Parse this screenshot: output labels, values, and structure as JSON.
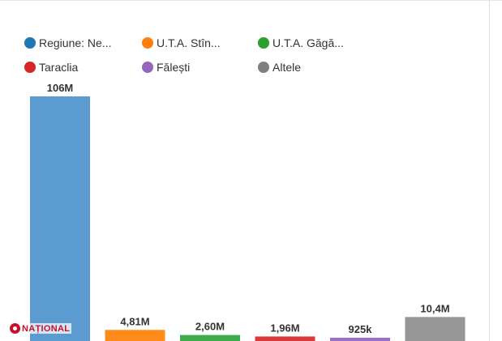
{
  "chart_data": {
    "type": "bar",
    "title": "",
    "xlabel": "",
    "ylabel": "",
    "ylim": [
      0,
      106
    ],
    "unit": "millions",
    "categories": [
      "Regiune: Ne...",
      "U.T.A. Stîn...",
      "U.T.A. Găgă...",
      "Taraclia",
      "Fălești",
      "Altele"
    ],
    "values": [
      106,
      4.81,
      2.6,
      1.96,
      0.925,
      10.4
    ],
    "data_labels": [
      "106M",
      "4,81M",
      "2,60M",
      "1,96M",
      "925k",
      "10,4M"
    ],
    "colors": [
      "#5b9bd0",
      "#ff8c1a",
      "#3cac4c",
      "#d93a3a",
      "#9a6fcb",
      "#969696"
    ],
    "legend": {
      "placement": "top-left",
      "entries": [
        {
          "label": "Regiune: Ne...",
          "color": "#1f77b4"
        },
        {
          "label": "U.T.A. Stîn...",
          "color": "#ff7f0e"
        },
        {
          "label": "U.T.A. Găgă...",
          "color": "#2ca02c"
        },
        {
          "label": "Taraclia",
          "color": "#d62728"
        },
        {
          "label": "Fălești",
          "color": "#9467bd"
        },
        {
          "label": "Altele",
          "color": "#7f7f7f"
        }
      ]
    }
  },
  "watermark": {
    "text": "NAȚIONAL"
  }
}
